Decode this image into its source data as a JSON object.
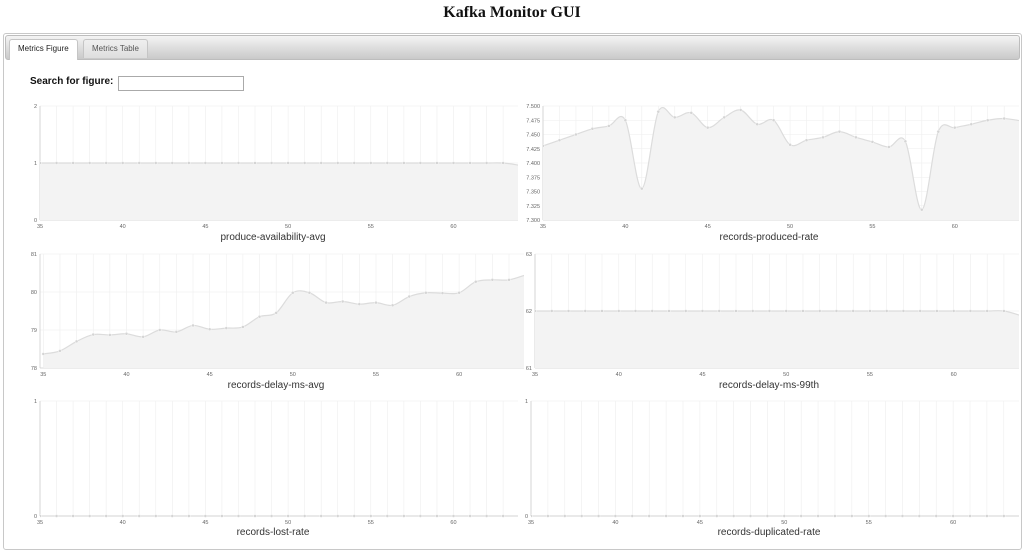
{
  "app": {
    "title": "Kafka Monitor GUI"
  },
  "tabs": [
    {
      "label": "Metrics Figure",
      "active": true
    },
    {
      "label": "Metrics Table",
      "active": false
    }
  ],
  "search": {
    "label": "Search for figure:",
    "value": "",
    "placeholder": ""
  },
  "style": {
    "line_color": "#dcdcdc",
    "point_color": "#d4d4d4",
    "fill_color": "#f3f3f3",
    "grid_color": "#eeeeee",
    "tick_color": "#666666"
  },
  "chart_data": [
    {
      "type": "line",
      "title": "produce-availability-avg",
      "x": [
        35,
        36,
        37,
        38,
        39,
        40,
        41,
        42,
        43,
        44,
        45,
        46,
        47,
        48,
        49,
        50,
        51,
        52,
        53,
        54,
        55,
        56,
        57,
        58,
        59,
        60,
        61,
        62,
        63,
        64
      ],
      "values": [
        1,
        1,
        1,
        1,
        1,
        1,
        1,
        1,
        1,
        1,
        1,
        1,
        1,
        1,
        1,
        1,
        1,
        1,
        1,
        1,
        1,
        1,
        1,
        1,
        1,
        1,
        1,
        1,
        1,
        0.96
      ],
      "xlim": [
        35,
        63.9
      ],
      "ylim": [
        0,
        2
      ],
      "xticks": [
        "35",
        "40",
        "45",
        "50",
        "55",
        "60"
      ],
      "yticks": [
        "0",
        "1",
        "2"
      ],
      "grid": true
    },
    {
      "type": "line",
      "title": "records-produced-rate",
      "x": [
        35,
        36,
        37,
        38,
        39,
        40,
        41,
        42,
        43,
        44,
        45,
        46,
        47,
        48,
        49,
        50,
        51,
        52,
        53,
        54,
        55,
        56,
        57,
        58,
        59,
        60,
        61,
        62,
        63,
        64
      ],
      "values": [
        7.43,
        7.44,
        7.45,
        7.46,
        7.465,
        7.475,
        7.355,
        7.49,
        7.48,
        7.488,
        7.462,
        7.48,
        7.493,
        7.468,
        7.475,
        7.432,
        7.44,
        7.445,
        7.455,
        7.445,
        7.437,
        7.428,
        7.438,
        7.318,
        7.455,
        7.462,
        7.468,
        7.475,
        7.478,
        7.474
      ],
      "xlim": [
        35,
        63.9
      ],
      "ylim": [
        7.3,
        7.5
      ],
      "xticks": [
        "35",
        "40",
        "45",
        "50",
        "55",
        "60"
      ],
      "yticks": [
        "7.300",
        "7.325",
        "7.350",
        "7.375",
        "7.400",
        "7.425",
        "7.450",
        "7.475",
        "7.500"
      ],
      "grid": true
    },
    {
      "type": "line",
      "title": "records-delay-ms-avg",
      "x": [
        35,
        36,
        37,
        38,
        39,
        40,
        41,
        42,
        43,
        44,
        45,
        46,
        47,
        48,
        49,
        50,
        51,
        52,
        53,
        54,
        55,
        56,
        57,
        58,
        59,
        60,
        61,
        62,
        63,
        64
      ],
      "values": [
        78.37,
        78.45,
        78.7,
        78.88,
        78.87,
        78.9,
        78.82,
        79.0,
        78.95,
        79.12,
        79.02,
        79.05,
        79.08,
        79.35,
        79.45,
        79.98,
        79.98,
        79.72,
        79.75,
        79.68,
        79.72,
        79.65,
        79.88,
        79.98,
        79.97,
        79.98,
        80.27,
        80.32,
        80.32,
        80.45
      ],
      "xlim": [
        34.8,
        63.9
      ],
      "ylim": [
        78,
        81
      ],
      "xticks": [
        "35",
        "40",
        "45",
        "50",
        "55",
        "60"
      ],
      "yticks": [
        "78",
        "79",
        "80",
        "81"
      ],
      "grid": true
    },
    {
      "type": "line",
      "title": "records-delay-ms-99th",
      "x": [
        35,
        36,
        37,
        38,
        39,
        40,
        41,
        42,
        43,
        44,
        45,
        46,
        47,
        48,
        49,
        50,
        51,
        52,
        53,
        54,
        55,
        56,
        57,
        58,
        59,
        60,
        61,
        62,
        63,
        64
      ],
      "values": [
        62,
        62,
        62,
        62,
        62,
        62,
        62,
        62,
        62,
        62,
        62,
        62,
        62,
        62,
        62,
        62,
        62,
        62,
        62,
        62,
        62,
        62,
        62,
        62,
        62,
        62,
        62,
        62,
        62,
        61.92
      ],
      "xlim": [
        35,
        63.9
      ],
      "ylim": [
        61,
        63
      ],
      "xticks": [
        "35",
        "40",
        "45",
        "50",
        "55",
        "60"
      ],
      "yticks": [
        "61",
        "62",
        "63"
      ],
      "grid": true
    },
    {
      "type": "line",
      "title": "records-lost-rate",
      "x": [
        35,
        36,
        37,
        38,
        39,
        40,
        41,
        42,
        43,
        44,
        45,
        46,
        47,
        48,
        49,
        50,
        51,
        52,
        53,
        54,
        55,
        56,
        57,
        58,
        59,
        60,
        61,
        62,
        63,
        64
      ],
      "values": [
        0,
        0,
        0,
        0,
        0,
        0,
        0,
        0,
        0,
        0,
        0,
        0,
        0,
        0,
        0,
        0,
        0,
        0,
        0,
        0,
        0,
        0,
        0,
        0,
        0,
        0,
        0,
        0,
        0,
        0
      ],
      "xlim": [
        35,
        63.9
      ],
      "ylim": [
        0,
        1
      ],
      "xticks": [
        "35",
        "40",
        "45",
        "50",
        "55",
        "60"
      ],
      "yticks": [
        "0",
        "1"
      ],
      "grid": true
    },
    {
      "type": "line",
      "title": "records-duplicated-rate",
      "x": [
        35,
        36,
        37,
        38,
        39,
        40,
        41,
        42,
        43,
        44,
        45,
        46,
        47,
        48,
        49,
        50,
        51,
        52,
        53,
        54,
        55,
        56,
        57,
        58,
        59,
        60,
        61,
        62,
        63,
        64
      ],
      "values": [
        0,
        0,
        0,
        0,
        0,
        0,
        0,
        0,
        0,
        0,
        0,
        0,
        0,
        0,
        0,
        0,
        0,
        0,
        0,
        0,
        0,
        0,
        0,
        0,
        0,
        0,
        0,
        0,
        0,
        0
      ],
      "xlim": [
        35,
        63.9
      ],
      "ylim": [
        0,
        1
      ],
      "xticks": [
        "35",
        "40",
        "45",
        "50",
        "55",
        "60"
      ],
      "yticks": [
        "0",
        "1"
      ],
      "grid": true
    }
  ]
}
